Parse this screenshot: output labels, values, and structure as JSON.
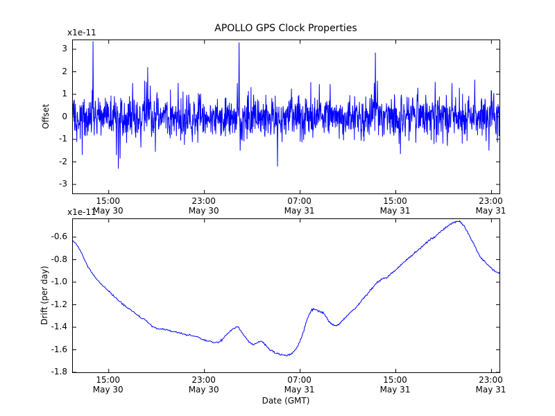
{
  "figure": {
    "title": "APOLLO GPS Clock Properties",
    "xlabel": "Date (GMT)",
    "background": "#ffffff",
    "line_color": "#0000ff",
    "axis_color": "#000000"
  },
  "chart_data": [
    {
      "id": "offset",
      "type": "line",
      "title": "APOLLO GPS Clock Properties",
      "ylabel": "Offset",
      "offset_text": "x1e-11",
      "legend": "none",
      "grid": false,
      "xlim": [
        0,
        35.67
      ],
      "ylim": [
        -3.4,
        3.4
      ],
      "yticks": [
        {
          "v": 3,
          "label": "3"
        },
        {
          "v": 2,
          "label": "2"
        },
        {
          "v": 1,
          "label": "1"
        },
        {
          "v": 0,
          "label": "0"
        },
        {
          "v": -1,
          "label": "-1"
        },
        {
          "v": -2,
          "label": "-2"
        },
        {
          "v": -3,
          "label": "-3"
        }
      ],
      "xticks": [
        {
          "v": 3,
          "label": [
            "15:00",
            "May 30"
          ]
        },
        {
          "v": 11,
          "label": [
            "23:00",
            "May 30"
          ]
        },
        {
          "v": 19,
          "label": [
            "07:00",
            "May 31"
          ]
        },
        {
          "v": 27,
          "label": [
            "15:00",
            "May 31"
          ]
        },
        {
          "v": 35,
          "label": [
            "23:00",
            "May 31"
          ]
        }
      ],
      "series": {
        "name": "gps-clock-offset",
        "color": "#0000ff",
        "noise": {
          "seed": 77,
          "n": 1500,
          "mean": 0,
          "std": 0.46,
          "heavy_tail_p": 0.03,
          "heavy_tail_mult": 1.7
        },
        "spikes": [
          {
            "x": 1.62,
            "v": 1.2
          },
          {
            "x": 1.68,
            "v": 3.35
          },
          {
            "x": 3.65,
            "v": -1.7
          },
          {
            "x": 3.8,
            "v": -2.3
          },
          {
            "x": 3.95,
            "v": -1.85
          },
          {
            "x": 5.0,
            "v": 1.5
          },
          {
            "x": 6.15,
            "v": 1.55
          },
          {
            "x": 6.25,
            "v": 2.2
          },
          {
            "x": 8.8,
            "v": 1.5
          },
          {
            "x": 13.75,
            "v": 1.5
          },
          {
            "x": 13.9,
            "v": 3.3
          },
          {
            "x": 14.0,
            "v": -1.5
          },
          {
            "x": 17.1,
            "v": -2.2
          },
          {
            "x": 20.6,
            "v": 1.45
          },
          {
            "x": 21.5,
            "v": 1.45
          },
          {
            "x": 25.2,
            "v": 1.5
          },
          {
            "x": 25.3,
            "v": 2.85
          },
          {
            "x": 25.45,
            "v": 1.6
          },
          {
            "x": 27.4,
            "v": -1.65
          },
          {
            "x": 30.3,
            "v": 1.55
          },
          {
            "x": 31.7,
            "v": 1.5
          },
          {
            "x": 33.6,
            "v": 1.65
          },
          {
            "x": 34.8,
            "v": -1.5
          }
        ]
      }
    },
    {
      "id": "drift",
      "type": "line",
      "ylabel": "Drift (per day)",
      "offset_text": "x1e-11",
      "legend": "none",
      "grid": false,
      "xlim": [
        0,
        35.67
      ],
      "ylim": [
        -1.8,
        -0.44
      ],
      "yticks": [
        {
          "v": -0.6,
          "label": "-0.6"
        },
        {
          "v": -0.8,
          "label": "-0.8"
        },
        {
          "v": -1.0,
          "label": "-1.0"
        },
        {
          "v": -1.2,
          "label": "-1.2"
        },
        {
          "v": -1.4,
          "label": "-1.4"
        },
        {
          "v": -1.6,
          "label": "-1.6"
        },
        {
          "v": -1.8,
          "label": "-1.8"
        }
      ],
      "xticks": [
        {
          "v": 3,
          "label": [
            "15:00",
            "May 30"
          ]
        },
        {
          "v": 11,
          "label": [
            "23:00",
            "May 30"
          ]
        },
        {
          "v": 19,
          "label": [
            "07:00",
            "May 31"
          ]
        },
        {
          "v": 27,
          "label": [
            "15:00",
            "May 31"
          ]
        },
        {
          "v": 35,
          "label": [
            "23:00",
            "May 31"
          ]
        }
      ],
      "series": {
        "name": "gps-clock-drift",
        "color": "#0000ff",
        "smooth": true,
        "jitter": 0.004,
        "points": [
          [
            0,
            -0.63
          ],
          [
            0.4,
            -0.68
          ],
          [
            0.8,
            -0.76
          ],
          [
            1.2,
            -0.85
          ],
          [
            1.6,
            -0.92
          ],
          [
            2.0,
            -0.975
          ],
          [
            2.5,
            -1.03
          ],
          [
            3.0,
            -1.08
          ],
          [
            3.5,
            -1.13
          ],
          [
            4.0,
            -1.18
          ],
          [
            4.5,
            -1.22
          ],
          [
            5.0,
            -1.26
          ],
          [
            5.5,
            -1.3
          ],
          [
            6.0,
            -1.335
          ],
          [
            6.5,
            -1.38
          ],
          [
            7.0,
            -1.41
          ],
          [
            7.5,
            -1.42
          ],
          [
            8.0,
            -1.43
          ],
          [
            8.5,
            -1.44
          ],
          [
            9.0,
            -1.455
          ],
          [
            9.5,
            -1.465
          ],
          [
            10.0,
            -1.475
          ],
          [
            10.5,
            -1.49
          ],
          [
            11.0,
            -1.515
          ],
          [
            11.5,
            -1.525
          ],
          [
            12.0,
            -1.535
          ],
          [
            12.4,
            -1.52
          ],
          [
            12.8,
            -1.47
          ],
          [
            13.2,
            -1.43
          ],
          [
            13.5,
            -1.405
          ],
          [
            13.8,
            -1.4
          ],
          [
            14.1,
            -1.44
          ],
          [
            14.5,
            -1.5
          ],
          [
            14.9,
            -1.545
          ],
          [
            15.2,
            -1.55
          ],
          [
            15.5,
            -1.53
          ],
          [
            15.8,
            -1.525
          ],
          [
            16.1,
            -1.56
          ],
          [
            16.5,
            -1.6
          ],
          [
            17.0,
            -1.63
          ],
          [
            17.4,
            -1.645
          ],
          [
            17.8,
            -1.65
          ],
          [
            18.2,
            -1.64
          ],
          [
            18.6,
            -1.6
          ],
          [
            19.0,
            -1.52
          ],
          [
            19.3,
            -1.43
          ],
          [
            19.6,
            -1.33
          ],
          [
            19.9,
            -1.26
          ],
          [
            20.1,
            -1.24
          ],
          [
            20.4,
            -1.25
          ],
          [
            20.7,
            -1.265
          ],
          [
            21.0,
            -1.28
          ],
          [
            21.3,
            -1.33
          ],
          [
            21.6,
            -1.37
          ],
          [
            21.9,
            -1.385
          ],
          [
            22.2,
            -1.375
          ],
          [
            22.5,
            -1.345
          ],
          [
            22.9,
            -1.3
          ],
          [
            23.3,
            -1.26
          ],
          [
            23.7,
            -1.22
          ],
          [
            24.1,
            -1.17
          ],
          [
            24.5,
            -1.12
          ],
          [
            24.9,
            -1.07
          ],
          [
            25.3,
            -1.02
          ],
          [
            25.7,
            -0.985
          ],
          [
            26.0,
            -0.965
          ],
          [
            26.3,
            -0.955
          ],
          [
            26.6,
            -0.925
          ],
          [
            27.0,
            -0.89
          ],
          [
            27.4,
            -0.85
          ],
          [
            27.8,
            -0.81
          ],
          [
            28.2,
            -0.775
          ],
          [
            28.6,
            -0.74
          ],
          [
            29.0,
            -0.7
          ],
          [
            29.4,
            -0.665
          ],
          [
            29.8,
            -0.63
          ],
          [
            30.2,
            -0.6
          ],
          [
            30.6,
            -0.565
          ],
          [
            31.0,
            -0.53
          ],
          [
            31.4,
            -0.5
          ],
          [
            31.8,
            -0.475
          ],
          [
            32.1,
            -0.462
          ],
          [
            32.4,
            -0.468
          ],
          [
            32.7,
            -0.5
          ],
          [
            33.0,
            -0.555
          ],
          [
            33.3,
            -0.615
          ],
          [
            33.6,
            -0.68
          ],
          [
            33.9,
            -0.745
          ],
          [
            34.2,
            -0.79
          ],
          [
            34.5,
            -0.825
          ],
          [
            34.9,
            -0.865
          ],
          [
            35.3,
            -0.9
          ],
          [
            35.67,
            -0.925
          ]
        ]
      }
    }
  ]
}
